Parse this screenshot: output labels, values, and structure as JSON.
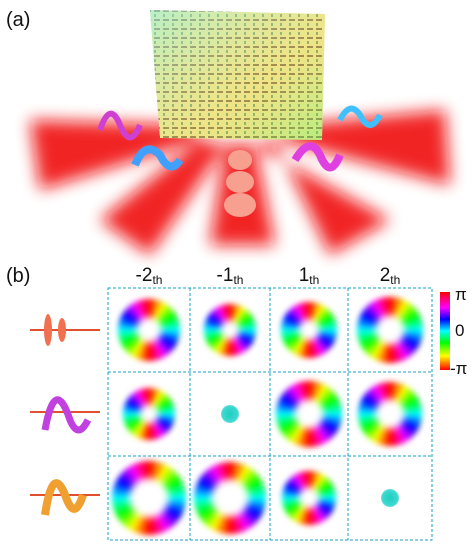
{
  "panel_a": {
    "label": "(a)"
  },
  "panel_b": {
    "label": "(b)",
    "columns": [
      {
        "order": "-2",
        "suffix": "th"
      },
      {
        "order": "-1",
        "suffix": "th"
      },
      {
        "order": "1",
        "suffix": "th"
      },
      {
        "order": "2",
        "suffix": "th"
      }
    ],
    "colorbar": {
      "top": "π",
      "middle": "0",
      "bottom": "-π"
    }
  }
}
